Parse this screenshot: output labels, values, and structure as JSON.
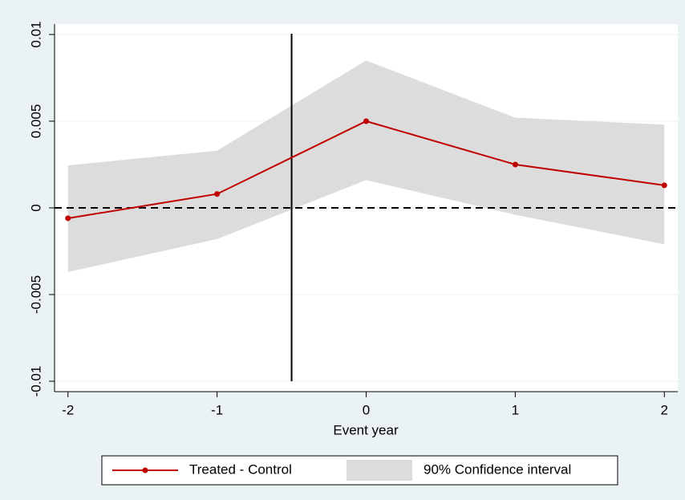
{
  "chart_data": {
    "type": "line",
    "x_label": "Event year",
    "x": [
      -2,
      -1,
      0,
      1,
      2
    ],
    "series": [
      {
        "name": "Treated - Control",
        "color": "#c00000",
        "values": [
          -0.0006,
          0.0008,
          0.005,
          0.0025,
          0.0013
        ]
      }
    ],
    "band": {
      "name": "90% Confidence interval",
      "color": "#dcdcdc",
      "lower": [
        -0.0037,
        -0.0018,
        0.0016,
        -0.0004,
        -0.0021
      ],
      "upper": [
        0.00245,
        0.0033,
        0.0085,
        0.0052,
        0.0048
      ]
    },
    "vline": -0.5,
    "hline": 0,
    "xlim": [
      -2.09,
      2.09
    ],
    "xticks": [
      -2,
      -1,
      0,
      1,
      2
    ],
    "ylim": [
      -0.0106,
      0.0106
    ],
    "yticks": [
      -0.01,
      -0.005,
      0,
      0.005,
      0.01
    ],
    "grid": true,
    "legend": "bottom"
  }
}
